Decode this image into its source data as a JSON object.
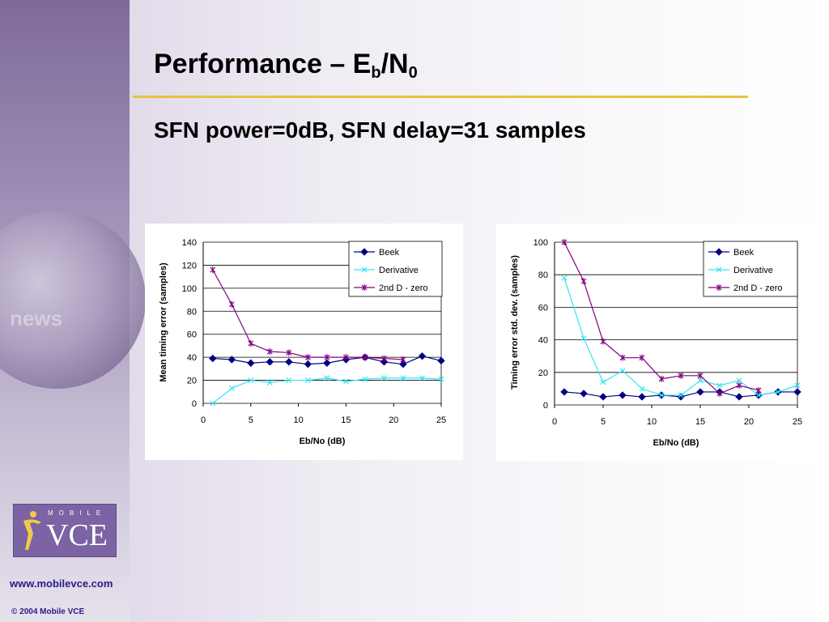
{
  "slide": {
    "title_main": "Performance – E",
    "title_sub": "b",
    "title_tail": "/N",
    "title_sub2": "0",
    "subtitle": "SFN power=0dB, SFN delay=31 samples",
    "footer_url": "www.mobilevce.com",
    "footer_copy": "© 2004 Mobile VCE",
    "logo_top": "MOBILE",
    "logo_main": "VCE",
    "background_text": "news"
  },
  "colors": {
    "beek": "#000080",
    "derivative": "#33e6f2",
    "second_d": "#800080",
    "title_rule": "#e8c23c"
  },
  "chart_data": [
    {
      "type": "line",
      "title": "",
      "xlabel": "Eb/No (dB)",
      "ylabel": "Mean timing error (samples)",
      "xlim": [
        0,
        25
      ],
      "ylim": [
        0,
        140
      ],
      "xticks": [
        0,
        5,
        10,
        15,
        20,
        25
      ],
      "yticks": [
        0,
        20,
        40,
        60,
        80,
        100,
        120,
        140
      ],
      "grid": true,
      "legend": "top-right",
      "series": [
        {
          "name": "Beek",
          "marker": "diamond",
          "x": [
            1,
            3,
            5,
            7,
            9,
            11,
            13,
            15,
            17,
            19,
            21,
            23,
            25
          ],
          "y": [
            39,
            38,
            35,
            36,
            36,
            34,
            35,
            38,
            40,
            36,
            34,
            41,
            37
          ]
        },
        {
          "name": "Derivative",
          "marker": "x",
          "x": [
            1,
            3,
            5,
            7,
            9,
            11,
            13,
            15,
            17,
            19,
            21,
            23,
            25
          ],
          "y": [
            0,
            13,
            20,
            18,
            20,
            20,
            22,
            19,
            21,
            22,
            22,
            22,
            21
          ]
        },
        {
          "name": "2nd D - zero",
          "marker": "star",
          "x": [
            1,
            3,
            5,
            7,
            9,
            11,
            13,
            15,
            17,
            19,
            21
          ],
          "y": [
            116,
            86,
            52,
            45,
            44,
            40,
            40,
            40,
            40,
            39,
            38
          ]
        }
      ]
    },
    {
      "type": "line",
      "title": "",
      "xlabel": "Eb/No (dB)",
      "ylabel": "Timing error std. dev. (samples)",
      "xlim": [
        0,
        25
      ],
      "ylim": [
        0,
        100
      ],
      "xticks": [
        0,
        5,
        10,
        15,
        20,
        25
      ],
      "yticks": [
        0,
        20,
        40,
        60,
        80,
        100
      ],
      "grid": true,
      "legend": "top-right",
      "series": [
        {
          "name": "Beek",
          "marker": "diamond",
          "x": [
            1,
            3,
            5,
            7,
            9,
            11,
            13,
            15,
            17,
            19,
            21,
            23,
            25
          ],
          "y": [
            8,
            7,
            5,
            6,
            5,
            6,
            5,
            8,
            8,
            5,
            6,
            8,
            8
          ]
        },
        {
          "name": "Derivative",
          "marker": "x",
          "x": [
            1,
            3,
            5,
            7,
            9,
            11,
            13,
            15,
            17,
            19,
            21,
            23,
            25
          ],
          "y": [
            78,
            41,
            14,
            21,
            10,
            6,
            6,
            15,
            12,
            15,
            6,
            8,
            12
          ]
        },
        {
          "name": "2nd D - zero",
          "marker": "star",
          "x": [
            1,
            3,
            5,
            7,
            9,
            11,
            13,
            15,
            17,
            19,
            21
          ],
          "y": [
            100,
            76,
            39,
            29,
            29,
            16,
            18,
            18,
            7,
            12,
            9
          ]
        }
      ]
    }
  ]
}
